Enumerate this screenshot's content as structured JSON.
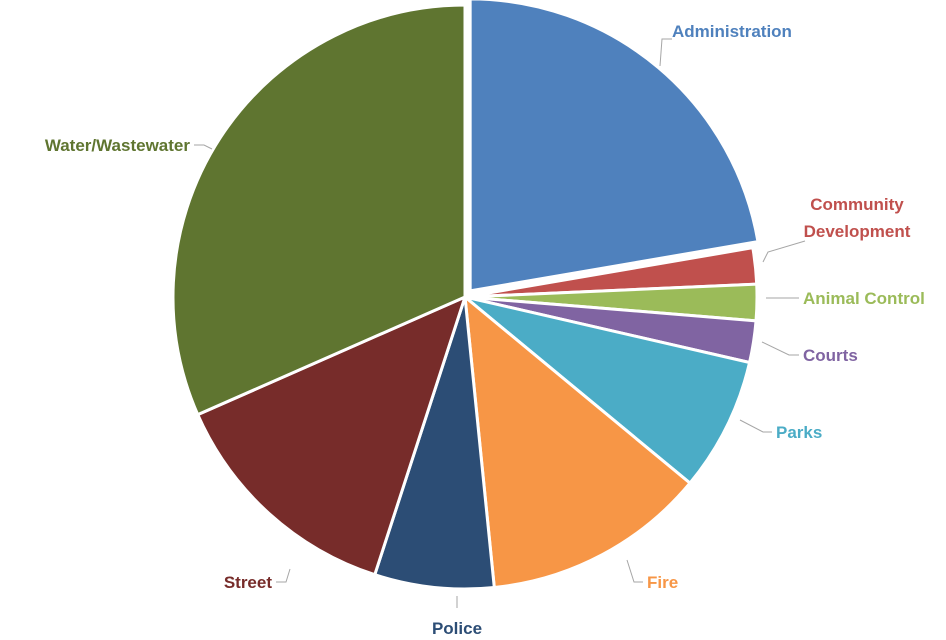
{
  "chart_data": {
    "type": "pie",
    "title": "",
    "start_angle_deg": 0,
    "direction": "clockwise",
    "labels": [
      "Administration",
      "Community Development",
      "Animal Control",
      "Courts",
      "Parks",
      "Fire",
      "Police",
      "Street",
      "Water/Wastewater"
    ],
    "values": [
      22.3,
      2.0,
      2.0,
      2.3,
      7.4,
      12.4,
      6.6,
      13.4,
      31.6
    ],
    "colors": [
      "#4F81BD",
      "#C0504D",
      "#9BBB59",
      "#8064A2",
      "#4BACC6",
      "#F79646",
      "#2C4D75",
      "#772C2A",
      "#5F7530"
    ],
    "label_display": [
      "Administration",
      "Community\nDevelopment",
      "Animal Control",
      "Courts",
      "Parks",
      "Fire",
      "Police",
      "Street",
      "Water/Wastewater"
    ],
    "exploded": [
      "Administration"
    ],
    "legend": "none",
    "data_labels": "category name, leader lines"
  }
}
